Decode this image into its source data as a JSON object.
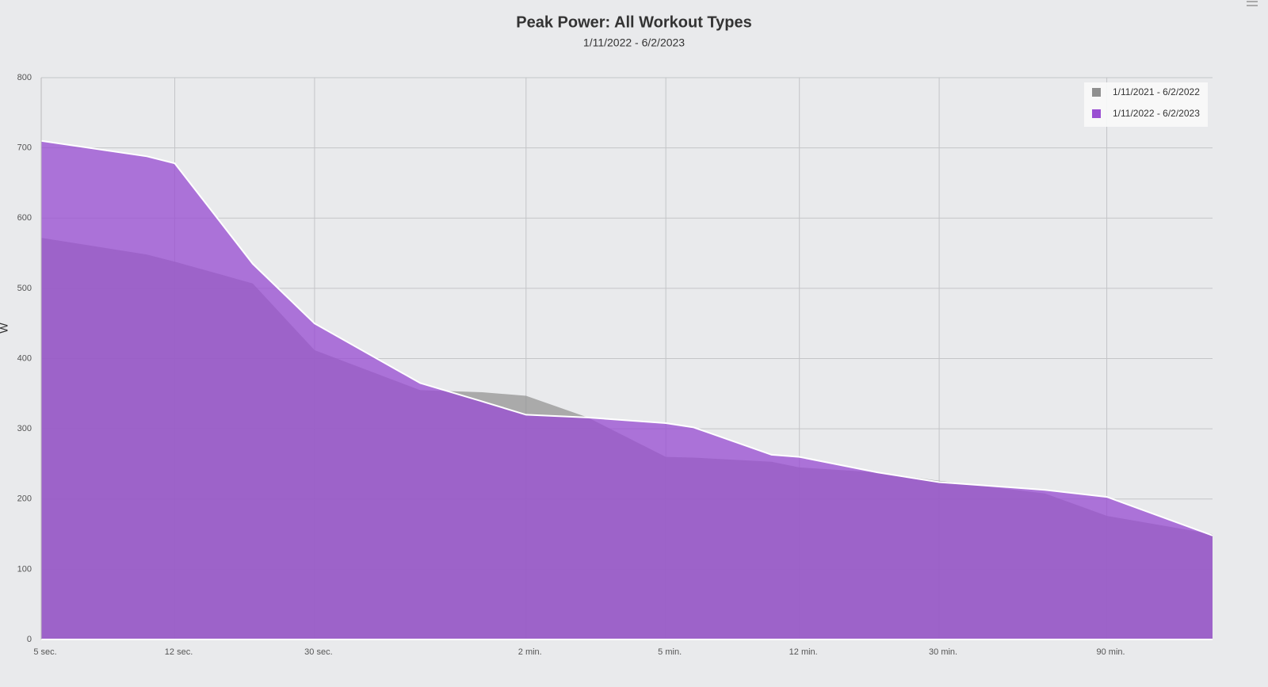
{
  "chart_data": {
    "type": "area",
    "title": "Peak Power: All Workout Types",
    "subtitle": "1/11/2022 - 6/2/2023",
    "y_label": "W",
    "x_scale": "log",
    "x": [
      5,
      10,
      12,
      20,
      30,
      60,
      90,
      120,
      180,
      300,
      360,
      600,
      720,
      1200,
      1800,
      3600,
      5400,
      10800
    ],
    "series": [
      {
        "name": "1/11/2021 - 6/2/2022",
        "color": "#8f8f8f",
        "values": [
          572,
          548,
          538,
          507,
          412,
          355,
          352,
          347,
          316,
          260,
          259,
          253,
          245,
          238,
          226,
          208,
          176,
          150
        ]
      },
      {
        "name": "1/11/2022 - 6/2/2023",
        "color": "#9a4fd2",
        "values": [
          710,
          688,
          678,
          535,
          450,
          365,
          339,
          320,
          316,
          308,
          302,
          263,
          260,
          238,
          224,
          213,
          203,
          148
        ]
      }
    ],
    "xlim": [
      5,
      10800
    ],
    "ylim": [
      0,
      800
    ],
    "xticks": [
      {
        "value": 5,
        "label": "5 sec."
      },
      {
        "value": 12,
        "label": "12 sec."
      },
      {
        "value": 30,
        "label": "30 sec."
      },
      {
        "value": 120,
        "label": "2 min."
      },
      {
        "value": 300,
        "label": "5 min."
      },
      {
        "value": 720,
        "label": "12 min."
      },
      {
        "value": 1800,
        "label": "30 min."
      },
      {
        "value": 5400,
        "label": "90 min."
      }
    ],
    "yticks": [
      0,
      100,
      200,
      300,
      400,
      500,
      600,
      700,
      800
    ],
    "grid": true,
    "legend": "top-right"
  }
}
